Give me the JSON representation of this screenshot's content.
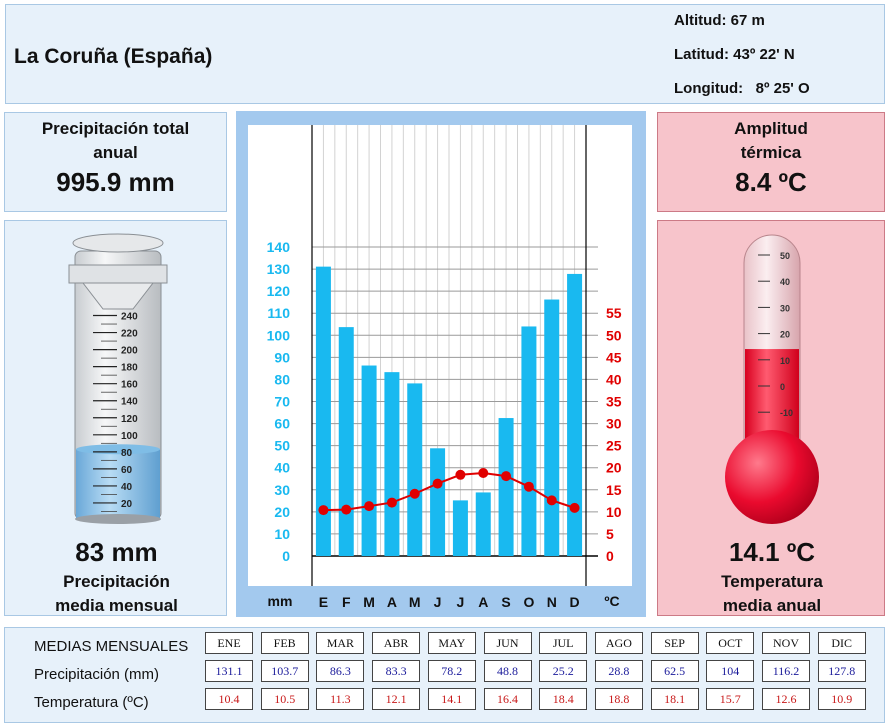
{
  "header": {
    "place": "La Coruña (España)",
    "altitude": "Altitud: 67 m",
    "latitude": "Latitud: 43º 22' N",
    "longitude": "Longitud:   8º 25' O"
  },
  "precip_total": {
    "title_1": "Precipitación total",
    "title_2": "anual",
    "value": "995.9 mm"
  },
  "precip_mean": {
    "value": "83 mm",
    "label_1": "Precipitación",
    "label_2": "media mensual",
    "level_mm": 83,
    "scale": [
      "240",
      "220",
      "200",
      "180",
      "160",
      "140",
      "120",
      "100",
      "80",
      "60",
      "40",
      "20"
    ]
  },
  "amplitude": {
    "title_1": "Amplitud",
    "title_2": "térmica",
    "value": "8.4 ºC"
  },
  "temp_mean": {
    "value": "14.1 ºC",
    "label_1": "Temperatura",
    "label_2": "media anual",
    "level_c": 14.1,
    "scale": [
      "50",
      "40",
      "30",
      "20",
      "10",
      "0",
      "-10"
    ]
  },
  "chart_data": {
    "type": "bar",
    "categories": [
      "E",
      "F",
      "M",
      "A",
      "M",
      "J",
      "J",
      "A",
      "S",
      "O",
      "N",
      "D"
    ],
    "series": [
      {
        "name": "Precipitación (mm)",
        "type": "bar",
        "axis": "left",
        "color": "#19b9f0",
        "values": [
          131.1,
          103.7,
          86.3,
          83.3,
          78.2,
          48.8,
          25.2,
          28.8,
          62.5,
          104,
          116.2,
          127.8
        ]
      },
      {
        "name": "Temperatura (ºC)",
        "type": "line",
        "axis": "right",
        "color": "#e00000",
        "values": [
          10.4,
          10.5,
          11.3,
          12.1,
          14.1,
          16.4,
          18.4,
          18.8,
          18.1,
          15.7,
          12.6,
          10.9
        ]
      }
    ],
    "xlabel_left": "mm",
    "xlabel_right": "ºC",
    "left_ticks": [
      "0",
      "10",
      "20",
      "30",
      "40",
      "50",
      "60",
      "70",
      "80",
      "90",
      "100",
      "110",
      "120",
      "130",
      "140"
    ],
    "right_ticks": [
      "0",
      "5",
      "10",
      "15",
      "20",
      "25",
      "30",
      "35",
      "40",
      "45",
      "50",
      "55"
    ],
    "ylim_left": [
      0,
      140
    ],
    "ylim_right": [
      0,
      70
    ],
    "grid": true,
    "colors": {
      "bar": "#19b9f0",
      "line": "#e00000",
      "left_axis": "#19b9f0",
      "right_axis": "#e00000"
    }
  },
  "table": {
    "title": "MEDIAS MENSUALES",
    "row_precip_label": "Precipitación (mm)",
    "row_temp_label": "Temperatura (ºC)",
    "months": [
      "ENE",
      "FEB",
      "MAR",
      "ABR",
      "MAY",
      "JUN",
      "JUL",
      "AGO",
      "SEP",
      "OCT",
      "NOV",
      "DIC"
    ],
    "precip": [
      "131.1",
      "103.7",
      "86.3",
      "83.3",
      "78.2",
      "48.8",
      "25.2",
      "28.8",
      "62.5",
      "104",
      "116.2",
      "127.8"
    ],
    "temp": [
      "10.4",
      "10.5",
      "11.3",
      "12.1",
      "14.1",
      "16.4",
      "18.4",
      "18.8",
      "18.1",
      "15.7",
      "12.6",
      "10.9"
    ]
  }
}
